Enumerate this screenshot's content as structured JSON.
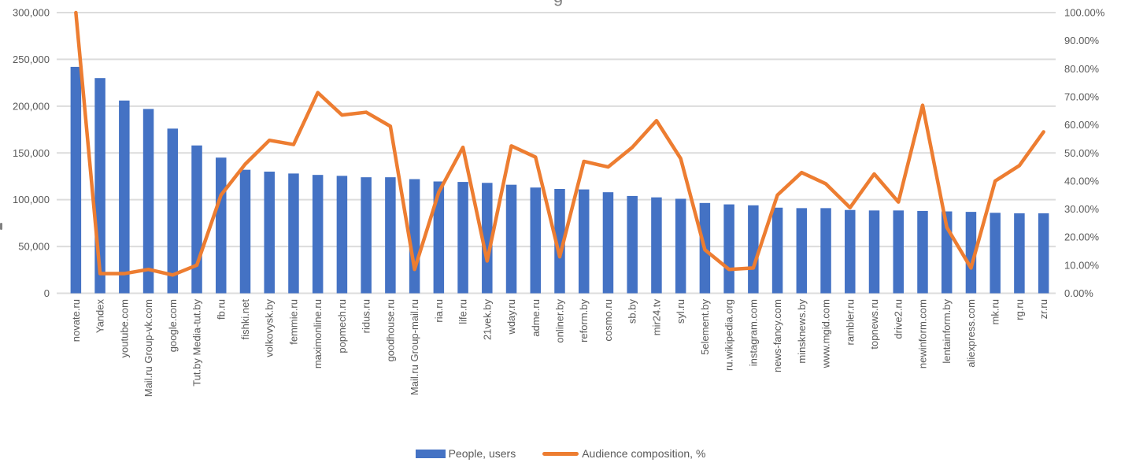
{
  "title_fragment": "g",
  "legend": {
    "bar_label": "People, users",
    "line_label": "Audience composition, %"
  },
  "colors": {
    "bar": "#4472C4",
    "line": "#ED7D31",
    "grid": "#DCDCDC",
    "axis_text": "#595959",
    "legend_text": "#595959",
    "title_fragment_text": "#808080"
  },
  "chart_data": {
    "type": "bar",
    "subtype": "bar+line combo, dual axis",
    "grid": true,
    "legend_position": "bottom",
    "categories": [
      "novate.ru",
      "Yandex",
      "youtube.com",
      "Mail.ru Group-vk.com",
      "google.com",
      "Tut.by Media-tut.by",
      "fb.ru",
      "fishki.net",
      "volkovysk.by",
      "femmie.ru",
      "maximonline.ru",
      "popmech.ru",
      "ridus.ru",
      "goodhouse.ru",
      "Mail.ru Group-mail.ru",
      "ria.ru",
      "life.ru",
      "21vek.by",
      "wday.ru",
      "adme.ru",
      "onliner.by",
      "reform.by",
      "cosmo.ru",
      "sb.by",
      "mir24.tv",
      "syl.ru",
      "5element.by",
      "ru.wikipedia.org",
      "instagram.com",
      "news-fancy.com",
      "minsknews.by",
      "www.mgid.com",
      "rambler.ru",
      "topnews.ru",
      "drive2.ru",
      "newinform.com",
      "lentainform.by",
      "aliexpress.com",
      "mk.ru",
      "rg.ru",
      "zr.ru"
    ],
    "series": [
      {
        "name": "People, users",
        "type": "bar",
        "axis": "left",
        "color": "#4472C4",
        "values": [
          242000,
          230000,
          206000,
          197000,
          176000,
          158000,
          145000,
          132000,
          130000,
          128000,
          126500,
          125500,
          124000,
          124000,
          122000,
          119500,
          119000,
          118000,
          116000,
          113000,
          111500,
          111000,
          108000,
          104000,
          102500,
          101000,
          96500,
          95000,
          94000,
          91500,
          91000,
          91000,
          89000,
          88500,
          88500,
          88000,
          87500,
          87000,
          86000,
          85500,
          85500
        ]
      },
      {
        "name": "Audience composition, %",
        "type": "line",
        "axis": "right",
        "color": "#ED7D31",
        "values_percent": [
          100,
          7,
          7,
          8.5,
          6.5,
          10,
          35,
          46,
          54.5,
          53,
          71.5,
          63.5,
          64.5,
          59.5,
          8.5,
          36,
          52,
          11.5,
          52.5,
          48.5,
          13,
          47,
          45,
          52,
          61.5,
          48,
          15.5,
          8.5,
          9,
          35,
          43,
          39,
          30.5,
          42.5,
          32.5,
          67,
          23.5,
          9,
          40,
          45.5,
          57.5
        ]
      }
    ],
    "left_axis": {
      "min": 0,
      "max": 300000,
      "tick_labels": [
        "0",
        "50,000",
        "100,000",
        "150,000",
        "200,000",
        "250,000",
        "300,000"
      ]
    },
    "right_axis": {
      "min_percent": 0,
      "max_percent": 100,
      "tick_labels": [
        "0.00%",
        "10.00%",
        "20.00%",
        "30.00%",
        "40.00%",
        "50.00%",
        "60.00%",
        "70.00%",
        "80.00%",
        "90.00%",
        "100.00%"
      ]
    }
  }
}
